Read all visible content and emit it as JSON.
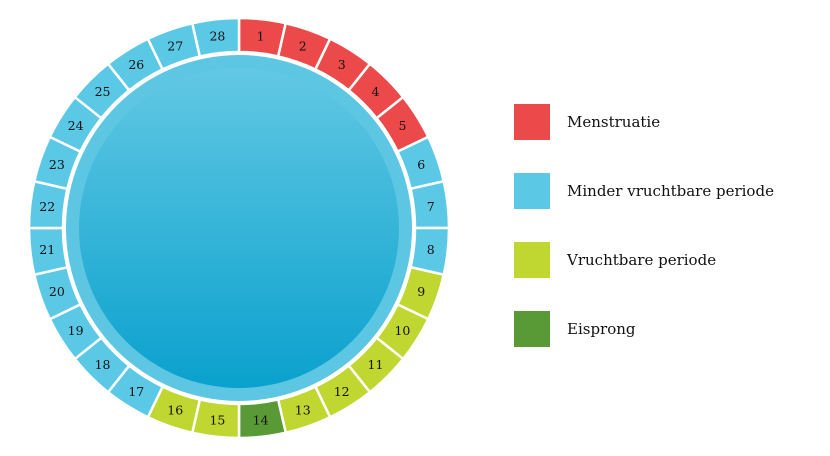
{
  "cycle": {
    "days": [
      {
        "label": "1",
        "phase": "menstruation"
      },
      {
        "label": "2",
        "phase": "menstruation"
      },
      {
        "label": "3",
        "phase": "menstruation"
      },
      {
        "label": "4",
        "phase": "menstruation"
      },
      {
        "label": "5",
        "phase": "menstruation"
      },
      {
        "label": "6",
        "phase": "less_fertile"
      },
      {
        "label": "7",
        "phase": "less_fertile"
      },
      {
        "label": "8",
        "phase": "less_fertile"
      },
      {
        "label": "9",
        "phase": "fertile"
      },
      {
        "label": "10",
        "phase": "fertile"
      },
      {
        "label": "11",
        "phase": "fertile"
      },
      {
        "label": "12",
        "phase": "fertile"
      },
      {
        "label": "13",
        "phase": "fertile"
      },
      {
        "label": "14",
        "phase": "ovulation"
      },
      {
        "label": "15",
        "phase": "fertile"
      },
      {
        "label": "16",
        "phase": "fertile"
      },
      {
        "label": "17",
        "phase": "less_fertile"
      },
      {
        "label": "18",
        "phase": "less_fertile"
      },
      {
        "label": "19",
        "phase": "less_fertile"
      },
      {
        "label": "20",
        "phase": "less_fertile"
      },
      {
        "label": "21",
        "phase": "less_fertile"
      },
      {
        "label": "22",
        "phase": "less_fertile"
      },
      {
        "label": "23",
        "phase": "less_fertile"
      },
      {
        "label": "24",
        "phase": "less_fertile"
      },
      {
        "label": "25",
        "phase": "less_fertile"
      },
      {
        "label": "26",
        "phase": "less_fertile"
      },
      {
        "label": "27",
        "phase": "less_fertile"
      },
      {
        "label": "28",
        "phase": "less_fertile"
      }
    ]
  },
  "legend": {
    "menstruation": {
      "label": "Menstruatie",
      "color": "#ec4a4a"
    },
    "less_fertile": {
      "label": "Minder vruchtbare periode",
      "color": "#5bc8e6"
    },
    "fertile": {
      "label": "Vruchtbare periode",
      "color": "#bfd730"
    },
    "ovulation": {
      "label": "Eisprong",
      "color": "#5a9a36"
    }
  },
  "colors": {
    "center_inner": "#0aa1cd",
    "center_outer": "#62c8e4",
    "center_ring": "#5cc6e3"
  }
}
